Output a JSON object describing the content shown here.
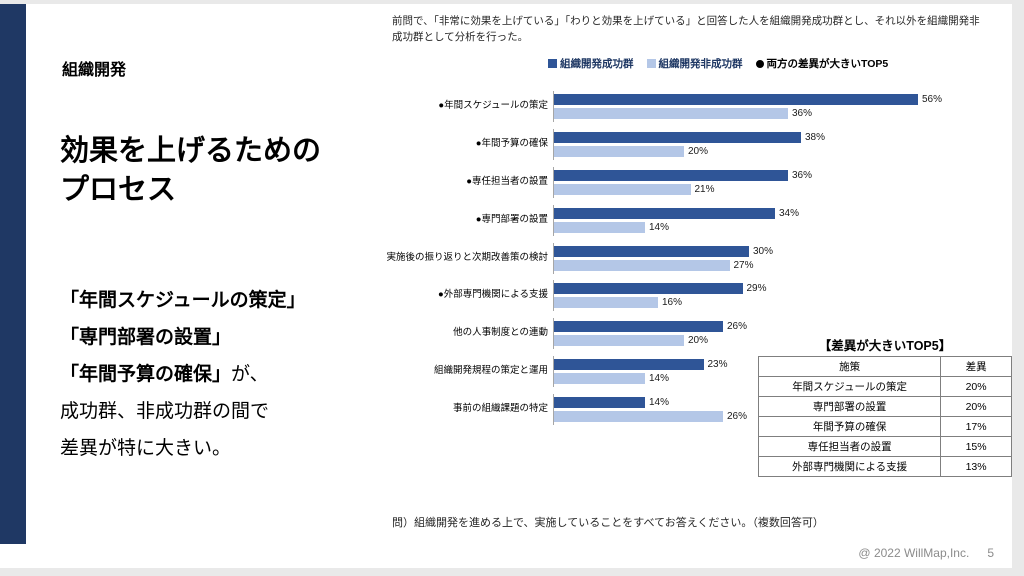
{
  "slide": {
    "kicker": "組織開発",
    "title_lines": [
      "効果を上げるための",
      "プロセス"
    ],
    "body_lines": [
      {
        "bold": "「年間スケジュールの策定」",
        "normal": ""
      },
      {
        "bold": "「専門部署の設置」",
        "normal": ""
      },
      {
        "bold": "「年間予算の確保」",
        "normal": "が、"
      },
      {
        "bold": "",
        "normal": "成功群、非成功群の間で"
      },
      {
        "bold": "",
        "normal": "差異が特に大きい。"
      }
    ],
    "note": "前問で、「非常に効果を上げている」「わりと効果を上げている」と回答した人を組織開発成功群とし、それ以外を組織開発非成功群として分析を行った。",
    "question": "問）組織開発を進める上で、実施していることをすべてお答えください。（複数回答可）",
    "footer": "@ 2022 WillMap,Inc.",
    "page_number": "5"
  },
  "legend": {
    "items": [
      {
        "label": "組織開発成功群",
        "swatch": "square",
        "color": "#2f5597"
      },
      {
        "label": "組織開発非成功群",
        "swatch": "square",
        "color": "#b4c7e7"
      },
      {
        "label": "両方の差異が大きいTOP5",
        "swatch": "circle",
        "color": "#000000"
      }
    ]
  },
  "chart_data": {
    "type": "bar",
    "orientation": "horizontal",
    "title": "",
    "xlabel": "",
    "ylabel": "",
    "xlim": [
      0,
      60
    ],
    "grid": false,
    "legend_position": "top",
    "value_suffix": "%",
    "categories": [
      "●年間スケジュールの策定",
      "●年間予算の確保",
      "●専任担当者の設置",
      "●専門部署の設置",
      "実施後の振り返りと次期改善策の検討",
      "●外部専門機関による支援",
      "他の人事制度との連動",
      "組織開発規程の策定と運用",
      "事前の組織課題の特定"
    ],
    "series": [
      {
        "name": "組織開発成功群",
        "color": "#2f5597",
        "values": [
          56,
          38,
          36,
          34,
          30,
          29,
          26,
          23,
          14
        ]
      },
      {
        "name": "組織開発非成功群",
        "color": "#b4c7e7",
        "values": [
          36,
          20,
          21,
          14,
          27,
          16,
          20,
          14,
          26
        ]
      }
    ]
  },
  "top5_table": {
    "title": "【差異が大きいTOP5】",
    "headers": [
      "施策",
      "差異"
    ],
    "rows": [
      [
        "年間スケジュールの策定",
        "20%"
      ],
      [
        "専門部署の設置",
        "20%"
      ],
      [
        "年間予算の確保",
        "17%"
      ],
      [
        "専任担当者の設置",
        "15%"
      ],
      [
        "外部専門機関による支援",
        "13%"
      ]
    ]
  }
}
